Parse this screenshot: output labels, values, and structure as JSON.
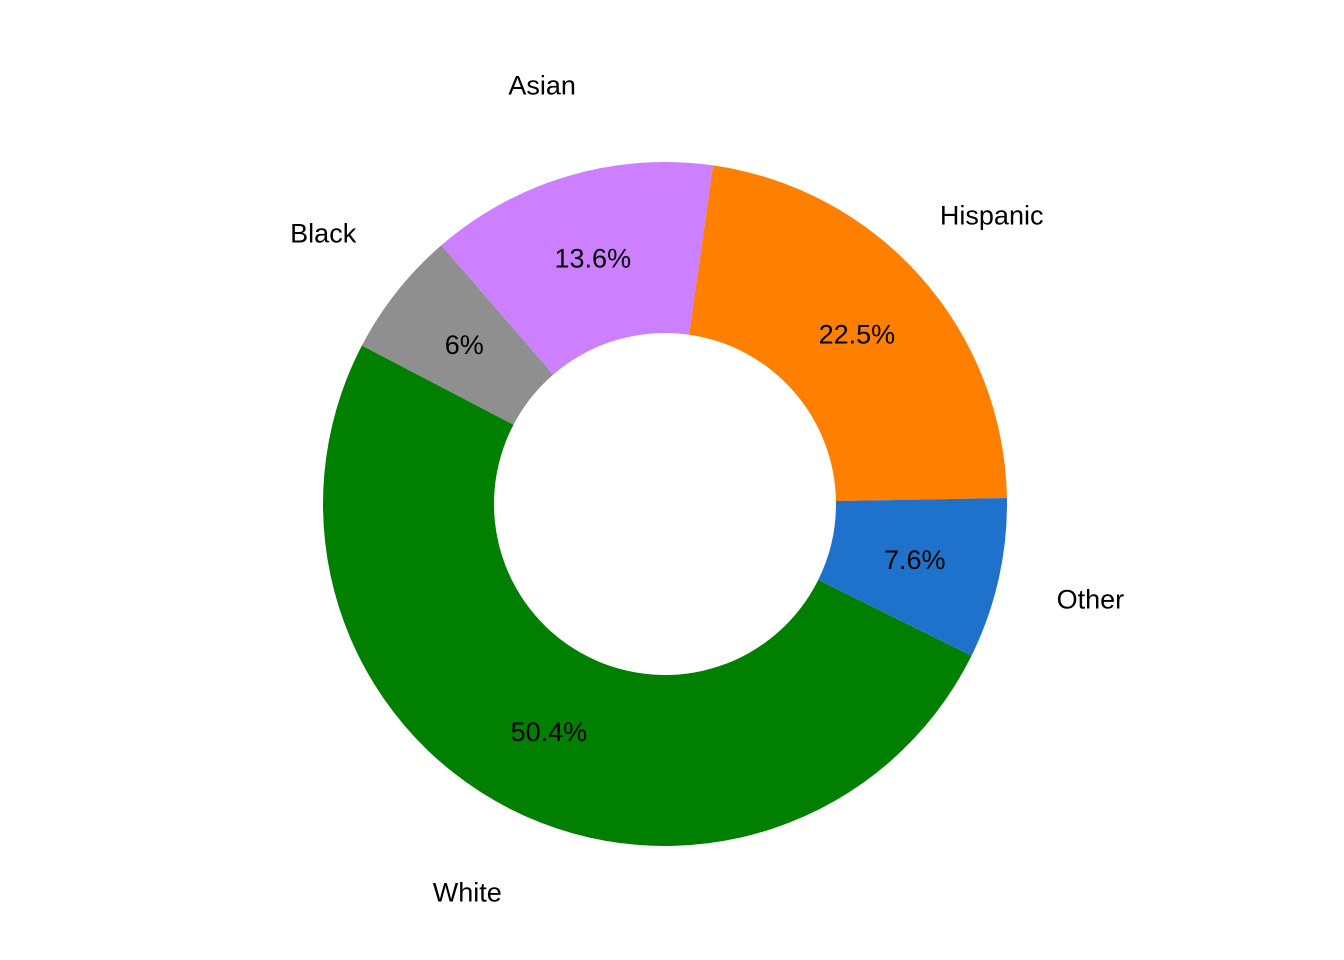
{
  "chart_data": {
    "type": "pie",
    "variant": "donut",
    "title": "",
    "slices": [
      {
        "label": "Hispanic",
        "value": 22.5,
        "display": "22.5%",
        "color": "#FF7F00"
      },
      {
        "label": "Asian",
        "value": 13.6,
        "display": "13.6%",
        "color": "#CC7FFF"
      },
      {
        "label": "Black",
        "value": 6.0,
        "display": "6%",
        "color": "#8F8F8F"
      },
      {
        "label": "White",
        "value": 50.4,
        "display": "50.4%",
        "color": "#007F00"
      },
      {
        "label": "Other",
        "value": 7.6,
        "display": "7.6%",
        "color": "#1F72CC"
      }
    ],
    "legend": "none",
    "direction": "counterclockwise"
  }
}
